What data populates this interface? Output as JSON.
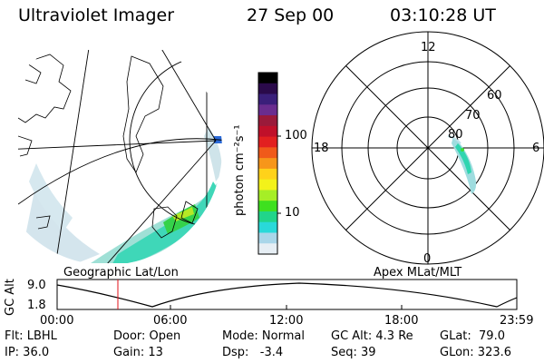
{
  "header": {
    "title": "Ultraviolet Imager",
    "date": "27 Sep 00",
    "time": "03:10:28 UT"
  },
  "colorbar": {
    "unit_label": "photon cm⁻²s⁻¹",
    "ticks": [
      "100",
      "10"
    ],
    "colors": [
      "#000000",
      "#2a0a4a",
      "#3a1f7a",
      "#6a2d8f",
      "#9a1a3a",
      "#c0102a",
      "#e22020",
      "#f05a1a",
      "#f7961a",
      "#ffd21a",
      "#f3f21a",
      "#a6ee26",
      "#3ee01f",
      "#21d58a",
      "#29d9d9",
      "#a9d6e9",
      "#e6eef4"
    ]
  },
  "left_panel": {
    "label": "Geographic Lat/Lon"
  },
  "right_panel": {
    "label": "Apex MLat/MLT",
    "mlt_labels": {
      "top": "12",
      "left": "18",
      "right": "6",
      "bottom": "0"
    },
    "lat_labels": [
      "60",
      "70",
      "80"
    ]
  },
  "timeline": {
    "axis_label": "GC Alt",
    "ytick_top": "9.0",
    "ytick_bottom": "1.8",
    "xticks": [
      "00:00",
      "06:00",
      "12:00",
      "18:00",
      "23:59"
    ],
    "current_time": "03:10:28"
  },
  "footer": {
    "flt": "Flt: LBHL",
    "door": "Door: Open",
    "mode": "Mode: Normal",
    "gc_alt": "GC Alt: 4.3 Re",
    "glat": "GLat:  79.0",
    "ip": "IP: 36.0",
    "gain": "Gain: 13",
    "dsp": "Dsp:   -3.4",
    "seq": "Seq: 39",
    "glon": "GLon: 323.6"
  }
}
